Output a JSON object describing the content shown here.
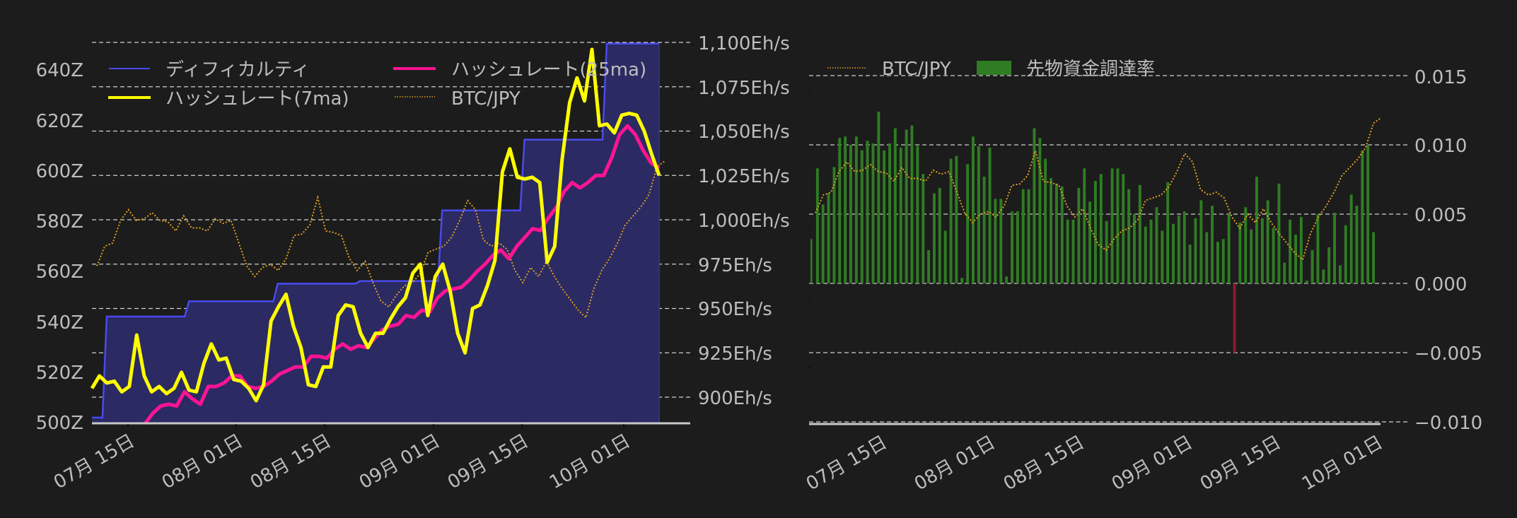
{
  "chart_data": [
    {
      "type": "line",
      "title": "",
      "xlabel": "",
      "ylabel_left": "",
      "ylabel_right": "",
      "x_tick_labels": [
        "07月 15日",
        "08月 01日",
        "08月 15日",
        "09月 01日",
        "09月 15日",
        "10月 01日"
      ],
      "y_left_tick_labels": [
        "500Z",
        "520Z",
        "540Z",
        "560Z",
        "580Z",
        "600Z",
        "620Z",
        "640Z"
      ],
      "y_left_range": [
        500,
        645
      ],
      "y_right_tick_labels": [
        "900Eh/s",
        "925Eh/s",
        "950Eh/s",
        "975Eh/s",
        "1,000Eh/s",
        "1,025Eh/s",
        "1,050Eh/s",
        "1,075Eh/s",
        "1,100Eh/s"
      ],
      "y_right_range": [
        885,
        1100
      ],
      "grid": true,
      "legend_position": "upper left",
      "legend": [
        "ディフィカルティ",
        "ハッシュレート(7ma)",
        "ハッシュレート(25ma)",
        "BTC/JPY"
      ],
      "series": [
        {
          "name": "ディフィカルティ",
          "axis": "left",
          "color": "#4a4af0",
          "fill": "#2b2a63",
          "unit": "Z",
          "steps": [
            {
              "from": "07-09",
              "value": 502
            },
            {
              "from": "07-11",
              "value": 542
            },
            {
              "from": "07-24",
              "value": 548
            },
            {
              "from": "08-07",
              "value": 555
            },
            {
              "from": "08-20",
              "value": 556
            },
            {
              "from": "09-02",
              "value": 584
            },
            {
              "from": "09-15",
              "value": 612
            },
            {
              "from": "09-28",
              "value": 650
            }
          ]
        },
        {
          "name": "ハッシュレート(7ma)",
          "axis": "right",
          "color": "#ffff00",
          "unit": "Eh/s",
          "values": [
            905,
            912,
            908,
            909,
            903,
            906,
            935,
            912,
            903,
            906,
            902,
            905,
            914,
            904,
            903,
            919,
            930,
            921,
            922,
            910,
            909,
            905,
            898,
            907,
            943,
            951,
            958,
            940,
            928,
            907,
            906,
            917,
            917,
            946,
            952,
            951,
            936,
            928,
            936,
            936,
            944,
            951,
            956,
            970,
            975,
            946,
            968,
            975,
            960,
            936,
            925,
            950,
            952,
            963,
            977,
            1027,
            1040,
            1024,
            1023,
            1024,
            1021,
            976,
            985,
            1034,
            1066,
            1080,
            1067,
            1096,
            1053,
            1054,
            1049,
            1059,
            1060,
            1059,
            1050,
            1037,
            1025
          ]
        },
        {
          "name": "ハッシュレート(25ma)",
          "axis": "right",
          "color": "#ff1493",
          "unit": "Eh/s",
          "values": [
            885,
            891,
            895,
            896,
            895,
            903,
            899,
            896,
            906,
            906,
            908,
            912,
            912,
            906,
            905,
            906,
            909,
            913,
            915,
            917,
            917,
            923,
            923,
            922,
            927,
            930,
            927,
            929,
            928,
            933,
            938,
            940,
            941,
            946,
            945,
            949,
            948,
            956,
            960,
            961,
            962,
            966,
            971,
            975,
            980,
            983,
            978,
            985,
            990,
            995,
            994,
            1001,
            1007,
            1016,
            1021,
            1018,
            1021,
            1025,
            1025,
            1035,
            1048,
            1053,
            1048,
            1039,
            1032,
            1029
          ]
        },
        {
          "name": "BTC/JPY",
          "axis": "hidden",
          "color": "#e0a020",
          "style": "dotted",
          "values": [
            0.25,
            0.38,
            0.4,
            0.55,
            0.62,
            0.55,
            0.56,
            0.6,
            0.55,
            0.54,
            0.48,
            0.58,
            0.5,
            0.5,
            0.48,
            0.56,
            0.53,
            0.55,
            0.4,
            0.25,
            0.18,
            0.24,
            0.26,
            0.22,
            0.3,
            0.45,
            0.46,
            0.52,
            0.7,
            0.48,
            0.47,
            0.45,
            0.3,
            0.22,
            0.28,
            0.14,
            0.02,
            -0.02,
            0.06,
            0.12,
            0.14,
            0.2,
            0.34,
            0.36,
            0.38,
            0.44,
            0.55,
            0.68,
            0.62,
            0.42,
            0.38,
            0.4,
            0.36,
            0.22,
            0.14,
            0.24,
            0.18,
            0.28,
            0.18,
            0.1,
            0.03,
            -0.04,
            -0.09,
            0.1,
            0.22,
            0.3,
            0.4,
            0.52,
            0.58,
            0.64,
            0.72,
            0.9,
            0.94
          ]
        }
      ]
    },
    {
      "type": "bar",
      "title": "",
      "xlabel": "",
      "ylabel": "",
      "x_tick_labels": [
        "07月 15日",
        "08月 01日",
        "08月 15日",
        "09月 01日",
        "09月 15日",
        "10月 01日"
      ],
      "y_tick_labels": [
        "−0.010",
        "−0.005",
        "0.000",
        "0.005",
        "0.010",
        "0.015"
      ],
      "ylim": [
        -0.0101,
        0.0155
      ],
      "grid": true,
      "legend_position": "upper left",
      "legend": [
        "BTC/JPY",
        "先物資金調達率"
      ],
      "series": [
        {
          "name": "先物資金調達率",
          "color_positive": "#2f7d23",
          "color_negative": "#8b1c26",
          "values": [
            0.0032,
            0.0083,
            0.0057,
            0.0065,
            0.0084,
            0.0105,
            0.0106,
            0.01,
            0.0106,
            0.0096,
            0.0103,
            0.0101,
            0.0124,
            0.0096,
            0.0101,
            0.0112,
            0.0098,
            0.0111,
            0.0114,
            0.0099,
            0.0079,
            0.0024,
            0.0065,
            0.0069,
            0.0038,
            0.009,
            0.0092,
            0.0004,
            0.0086,
            0.0106,
            0.0099,
            0.0077,
            0.0098,
            0.0061,
            0.0061,
            0.0005,
            0.0052,
            0.0052,
            0.0068,
            0.0068,
            0.0112,
            0.0105,
            0.009,
            0.0076,
            0.0072,
            0.007,
            0.0046,
            0.0046,
            0.0069,
            0.0083,
            0.0059,
            0.0074,
            0.0079,
            0.0045,
            0.0083,
            0.0083,
            0.0079,
            0.0068,
            0.005,
            0.0071,
            0.0041,
            0.0046,
            0.0055,
            0.0038,
            0.0073,
            0.0043,
            0.0049,
            0.0052,
            0.0028,
            0.0047,
            0.006,
            0.0037,
            0.0056,
            0.003,
            0.0032,
            0.005,
            -0.005,
            0.0044,
            0.0055,
            0.0039,
            0.0077,
            0.0047,
            0.006,
            0.004,
            0.0072,
            0.0015,
            0.0046,
            0.0035,
            0.0048,
            0.0002,
            0.0024,
            0.005,
            0.001,
            0.0026,
            0.0051,
            0.0013,
            0.0042,
            0.0064,
            0.0056,
            0.0096,
            0.01,
            0.0037
          ]
        },
        {
          "name": "BTC/JPY",
          "color": "#e0a020",
          "style": "dotted",
          "values": [
            0.25,
            0.38,
            0.4,
            0.55,
            0.62,
            0.55,
            0.56,
            0.6,
            0.55,
            0.54,
            0.48,
            0.58,
            0.5,
            0.5,
            0.48,
            0.56,
            0.53,
            0.55,
            0.4,
            0.25,
            0.18,
            0.24,
            0.26,
            0.22,
            0.3,
            0.45,
            0.46,
            0.52,
            0.7,
            0.48,
            0.47,
            0.45,
            0.3,
            0.22,
            0.28,
            0.14,
            0.02,
            -0.02,
            0.06,
            0.12,
            0.14,
            0.2,
            0.34,
            0.36,
            0.38,
            0.44,
            0.55,
            0.68,
            0.62,
            0.42,
            0.38,
            0.4,
            0.36,
            0.22,
            0.14,
            0.24,
            0.18,
            0.28,
            0.18,
            0.1,
            0.03,
            -0.04,
            -0.09,
            0.1,
            0.22,
            0.3,
            0.4,
            0.52,
            0.58,
            0.64,
            0.72,
            0.9,
            0.94
          ]
        }
      ]
    }
  ],
  "left_chart": {
    "legend": {
      "difficulty": "ディフィカルティ",
      "hashrate_7ma": "ハッシュレート(7ma)",
      "hashrate_25ma": "ハッシュレート(25ma)",
      "btcjpy": "BTC/JPY"
    },
    "y_left": [
      "640Z",
      "620Z",
      "600Z",
      "580Z",
      "560Z",
      "540Z",
      "520Z",
      "500Z"
    ],
    "y_right": [
      "1,100Eh/s",
      "1,075Eh/s",
      "1,050Eh/s",
      "1,025Eh/s",
      "1,000Eh/s",
      "975Eh/s",
      "950Eh/s",
      "925Eh/s",
      "900Eh/s"
    ],
    "x": [
      "07月 15日",
      "08月 01日",
      "08月 15日",
      "09月 01日",
      "09月 15日",
      "10月 01日"
    ]
  },
  "right_chart": {
    "legend": {
      "btcjpy": "BTC/JPY",
      "funding": "先物資金調達率"
    },
    "y_right": [
      "0.015",
      "0.010",
      "0.005",
      "0.000",
      "−0.005",
      "−0.010"
    ],
    "x": [
      "07月 15日",
      "08月 01日",
      "08月 15日",
      "09月 01日",
      "09月 15日",
      "10月 01日"
    ]
  },
  "colors": {
    "background": "#1c1c1c",
    "text": "#bdbdbd",
    "difficulty": "#4a4af0",
    "difficulty_fill": "#2b2a63",
    "hashrate_7ma": "#ffff00",
    "hashrate_25ma": "#ff1493",
    "btcjpy": "#e0a020",
    "funding_pos": "#2f7d23",
    "funding_neg": "#8b1c26"
  }
}
